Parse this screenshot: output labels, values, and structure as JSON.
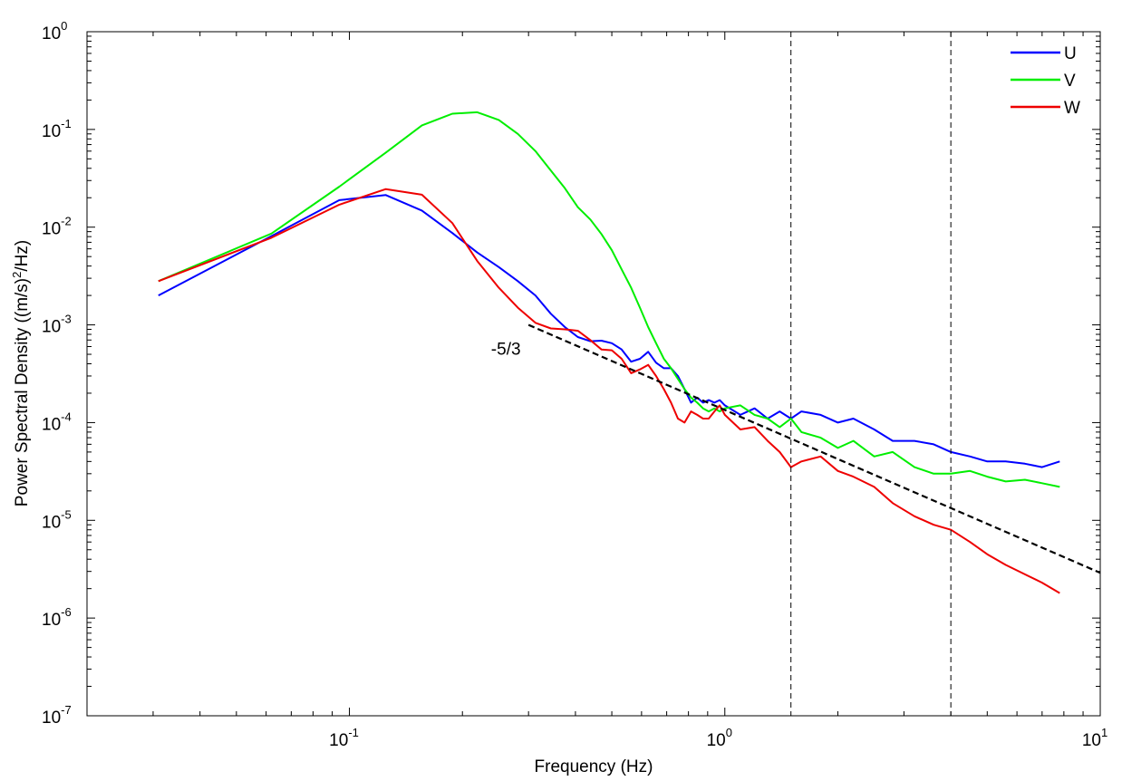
{
  "chart_data": {
    "type": "line",
    "xlabel": "Frequency (Hz)",
    "ylabel_parts": [
      "Power Spectral Density  ((m/s)",
      "2",
      "/Hz)"
    ],
    "x_scale": "log",
    "y_scale": "log",
    "xlim": [
      0.02,
      10
    ],
    "ylim": [
      1e-07,
      1
    ],
    "x_ticks": [
      {
        "value": 0.1,
        "base": "10",
        "exp": "-1"
      },
      {
        "value": 1,
        "base": "10",
        "exp": "0"
      },
      {
        "value": 10,
        "base": "10",
        "exp": "1"
      }
    ],
    "y_ticks": [
      {
        "value": 1,
        "base": "10",
        "exp": "0"
      },
      {
        "value": 0.1,
        "base": "10",
        "exp": "-1"
      },
      {
        "value": 0.01,
        "base": "10",
        "exp": "-2"
      },
      {
        "value": 0.001,
        "base": "10",
        "exp": "-3"
      },
      {
        "value": 0.0001,
        "base": "10",
        "exp": "-4"
      },
      {
        "value": 1e-05,
        "base": "10",
        "exp": "-5"
      },
      {
        "value": 1e-06,
        "base": "10",
        "exp": "-6"
      },
      {
        "value": 1e-07,
        "base": "10",
        "exp": "-7"
      }
    ],
    "legend_position": "top-right",
    "grid": false,
    "series": [
      {
        "name": "U",
        "color": "#0000ff",
        "x": [
          0.031,
          0.062,
          0.094,
          0.125,
          0.156,
          0.188,
          0.219,
          0.25,
          0.281,
          0.313,
          0.344,
          0.375,
          0.406,
          0.438,
          0.469,
          0.5,
          0.531,
          0.563,
          0.594,
          0.625,
          0.656,
          0.688,
          0.719,
          0.75,
          0.781,
          0.813,
          0.844,
          0.875,
          0.906,
          0.938,
          0.969,
          1.0,
          1.1,
          1.2,
          1.3,
          1.4,
          1.5,
          1.6,
          1.8,
          2.0,
          2.2,
          2.5,
          2.8,
          3.2,
          3.6,
          4.0,
          4.5,
          5.0,
          5.6,
          6.3,
          7.0,
          7.8
        ],
        "y": [
          0.002,
          0.0081,
          0.0189,
          0.0213,
          0.0148,
          0.0087,
          0.0055,
          0.0039,
          0.0028,
          0.002,
          0.0013,
          0.00095,
          0.00075,
          0.00068,
          0.00069,
          0.00065,
          0.00056,
          0.00042,
          0.00045,
          0.00053,
          0.00041,
          0.00036,
          0.00036,
          0.0003,
          0.00022,
          0.00016,
          0.00018,
          0.00016,
          0.00017,
          0.00016,
          0.00017,
          0.00015,
          0.00012,
          0.00014,
          0.00011,
          0.00013,
          0.00011,
          0.00013,
          0.00012,
          0.0001,
          0.00011,
          8.5e-05,
          6.5e-05,
          6.5e-05,
          6e-05,
          5e-05,
          4.5e-05,
          4e-05,
          4e-05,
          3.8e-05,
          3.5e-05,
          4e-05
        ]
      },
      {
        "name": "V",
        "color": "#00ee00",
        "x": [
          0.031,
          0.062,
          0.094,
          0.125,
          0.156,
          0.188,
          0.219,
          0.25,
          0.281,
          0.313,
          0.344,
          0.375,
          0.406,
          0.438,
          0.469,
          0.5,
          0.531,
          0.563,
          0.594,
          0.625,
          0.656,
          0.688,
          0.719,
          0.75,
          0.781,
          0.813,
          0.844,
          0.875,
          0.906,
          0.938,
          0.969,
          1.0,
          1.1,
          1.2,
          1.3,
          1.4,
          1.5,
          1.6,
          1.8,
          2.0,
          2.2,
          2.5,
          2.8,
          3.2,
          3.6,
          4.0,
          4.5,
          5.0,
          5.6,
          6.3,
          7.0,
          7.8
        ],
        "y": [
          0.0028,
          0.0086,
          0.026,
          0.058,
          0.11,
          0.145,
          0.15,
          0.125,
          0.09,
          0.06,
          0.038,
          0.025,
          0.016,
          0.012,
          0.0085,
          0.0058,
          0.0037,
          0.0024,
          0.0015,
          0.00095,
          0.00065,
          0.00045,
          0.00036,
          0.00028,
          0.00022,
          0.00018,
          0.00016,
          0.00014,
          0.00013,
          0.00014,
          0.00013,
          0.00014,
          0.00015,
          0.00012,
          0.00011,
          9e-05,
          0.00011,
          8e-05,
          7e-05,
          5.5e-05,
          6.5e-05,
          4.5e-05,
          5e-05,
          3.5e-05,
          3e-05,
          3e-05,
          3.2e-05,
          2.8e-05,
          2.5e-05,
          2.6e-05,
          2.4e-05,
          2.2e-05
        ]
      },
      {
        "name": "W",
        "color": "#ee0000",
        "x": [
          0.031,
          0.062,
          0.094,
          0.125,
          0.156,
          0.188,
          0.219,
          0.25,
          0.281,
          0.313,
          0.344,
          0.375,
          0.406,
          0.438,
          0.469,
          0.5,
          0.531,
          0.563,
          0.594,
          0.625,
          0.656,
          0.688,
          0.719,
          0.75,
          0.781,
          0.813,
          0.844,
          0.875,
          0.906,
          0.938,
          0.969,
          1.0,
          1.1,
          1.2,
          1.3,
          1.4,
          1.5,
          1.6,
          1.8,
          2.0,
          2.2,
          2.5,
          2.8,
          3.2,
          3.6,
          4.0,
          4.5,
          5.0,
          5.6,
          6.3,
          7.0,
          7.8
        ],
        "y": [
          0.0028,
          0.0078,
          0.017,
          0.0245,
          0.0215,
          0.011,
          0.0045,
          0.0024,
          0.0015,
          0.00105,
          0.00092,
          0.0009,
          0.00087,
          0.0007,
          0.00056,
          0.00055,
          0.00045,
          0.00032,
          0.00035,
          0.00039,
          0.0003,
          0.00022,
          0.00016,
          0.00011,
          0.0001,
          0.00013,
          0.00012,
          0.00011,
          0.00011,
          0.00013,
          0.00015,
          0.00012,
          8.5e-05,
          9e-05,
          6.5e-05,
          5e-05,
          3.5e-05,
          4e-05,
          4.5e-05,
          3.2e-05,
          2.8e-05,
          2.2e-05,
          1.5e-05,
          1.1e-05,
          9e-06,
          8e-06,
          6e-06,
          4.5e-06,
          3.5e-06,
          2.8e-06,
          2.3e-06,
          1.8e-06
        ]
      }
    ],
    "reference_line": {
      "label": "-5/3",
      "x": [
        0.3,
        10
      ],
      "y": [
        0.001,
        2.9e-06
      ],
      "color": "#000000",
      "style": "dashed"
    },
    "vertical_lines": [
      1.5,
      4.0
    ]
  }
}
